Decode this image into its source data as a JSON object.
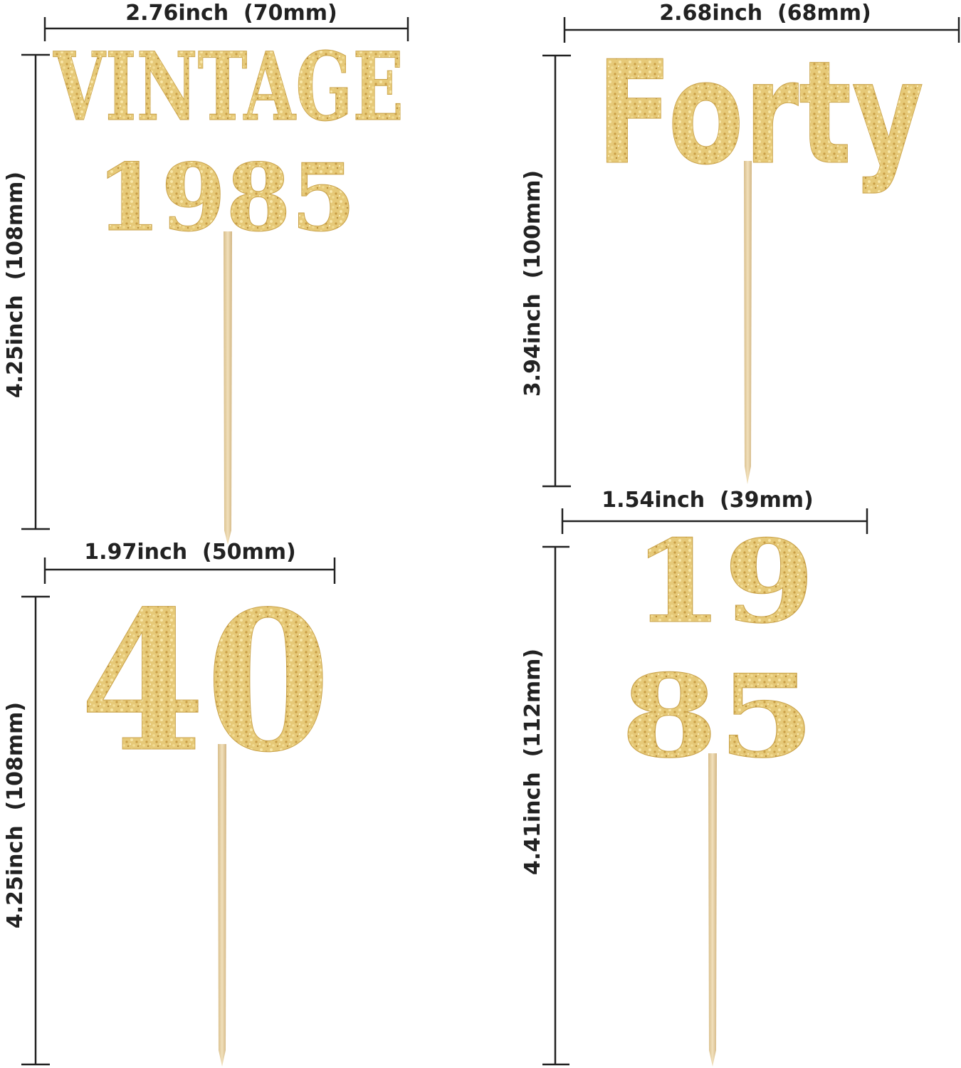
{
  "colors": {
    "gold": "#e3c46f",
    "gold_dark": "#c9a24a",
    "wood": "#e8d3a8",
    "line": "#222222"
  },
  "toppers": [
    {
      "name": "vintage-1985",
      "lines": [
        "VINTAGE",
        "1985"
      ],
      "width_label": "2.76inch  (70mm)",
      "height_label": "4.25inch  (108mm)"
    },
    {
      "name": "forty",
      "lines": [
        "Forty"
      ],
      "width_label": "2.68inch  (68mm)",
      "height_label": "3.94inch  (100mm)"
    },
    {
      "name": "40",
      "lines": [
        "40"
      ],
      "width_label": "1.97inch  (50mm)",
      "height_label": "4.25inch  (108mm)"
    },
    {
      "name": "19-85",
      "lines": [
        "19",
        "85"
      ],
      "width_label": "1.54inch  (39mm)",
      "height_label": "4.41inch  (112mm)"
    }
  ]
}
